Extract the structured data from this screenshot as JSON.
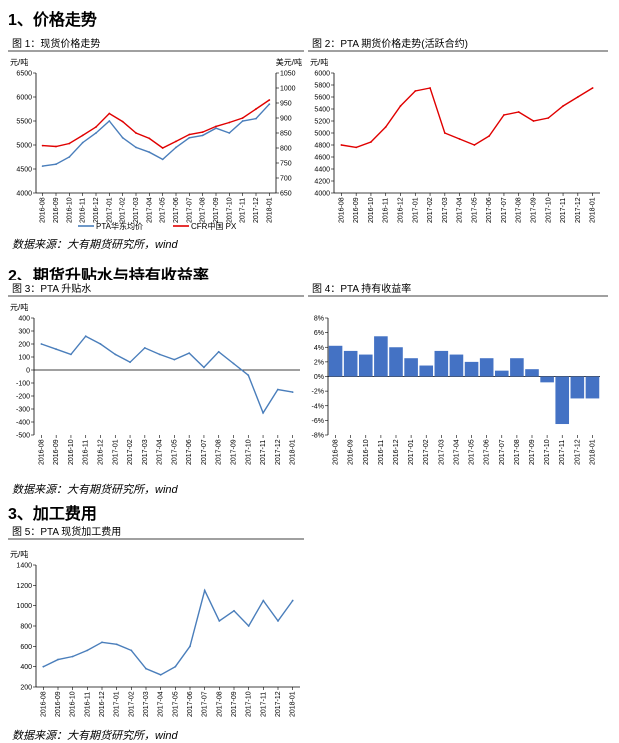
{
  "sections": [
    "1、价格走势",
    "2、期货升贴水与持有收益率",
    "3、加工费用"
  ],
  "source": "数据来源：大有期货研究所，wind",
  "months": [
    "2016-08",
    "2016-09",
    "2016-10",
    "2016-11",
    "2016-12",
    "2017-01",
    "2017-02",
    "2017-03",
    "2017-04",
    "2017-05",
    "2017-06",
    "2017-07",
    "2017-08",
    "2017-09",
    "2017-10",
    "2017-11",
    "2017-12",
    "2018-01"
  ],
  "chart_data": [
    {
      "type": "line",
      "title": "图 1：现货价格走势",
      "ylabel_left": "元/吨",
      "ylabel_right": "美元/吨",
      "ylim": [
        4000,
        6500
      ],
      "y2lim": [
        650,
        1050
      ],
      "yticks": [
        4000,
        4500,
        5000,
        5500,
        6000,
        6500
      ],
      "y2ticks": [
        650,
        700,
        750,
        800,
        850,
        900,
        950,
        1000,
        1050
      ],
      "x": [
        "2016-08",
        "2016-09",
        "2016-10",
        "2016-11",
        "2016-12",
        "2017-01",
        "2017-02",
        "2017-03",
        "2017-04",
        "2017-05",
        "2017-06",
        "2017-07",
        "2017-08",
        "2017-09",
        "2017-10",
        "2017-11",
        "2017-12",
        "2018-01"
      ],
      "series": [
        {
          "name": "PTA华东均价",
          "axis": "left",
          "color": "#4a7ebb",
          "values": [
            4560,
            4600,
            4750,
            5050,
            5250,
            5500,
            5150,
            4950,
            4850,
            4700,
            4950,
            5150,
            5200,
            5350,
            5250,
            5500,
            5550,
            5850
          ]
        },
        {
          "name": "CFR中国 PX",
          "axis": "right",
          "color": "#e00000",
          "values": [
            808,
            805,
            815,
            842,
            870,
            915,
            888,
            850,
            832,
            800,
            822,
            845,
            853,
            872,
            885,
            900,
            930,
            960
          ]
        }
      ],
      "legend": "bottom"
    },
    {
      "type": "line",
      "title": "图 2：PTA 期货价格走势(活跃合约)",
      "ylabel": "元/吨",
      "ylim": [
        4000,
        6000
      ],
      "yticks": [
        4000,
        4200,
        4400,
        4600,
        4800,
        5000,
        5200,
        5400,
        5600,
        5800,
        6000
      ],
      "x": [
        "2016-08",
        "2016-09",
        "2016-10",
        "2016-11",
        "2016-12",
        "2017-01",
        "2017-02",
        "2017-03",
        "2017-04",
        "2017-05",
        "2017-06",
        "2017-07",
        "2017-08",
        "2017-09",
        "2017-10",
        "2017-11",
        "2017-12",
        "2018-01"
      ],
      "series": [
        {
          "name": "",
          "color": "#e00000",
          "values": [
            4800,
            4760,
            4850,
            5100,
            5450,
            5700,
            5750,
            5000,
            4900,
            4800,
            4950,
            5300,
            5350,
            5200,
            5250,
            5450,
            5600,
            5750
          ]
        }
      ]
    },
    {
      "type": "line",
      "title": "图 3：PTA 升贴水",
      "ylabel": "元/吨",
      "ylim": [
        -500,
        400
      ],
      "yticks": [
        -500,
        -400,
        -300,
        -200,
        -100,
        0,
        100,
        200,
        300,
        400
      ],
      "x": [
        "2016-08",
        "2016-09",
        "2016-10",
        "2016-11",
        "2016-12",
        "2017-01",
        "2017-02",
        "2017-03",
        "2017-04",
        "2017-05",
        "2017-06",
        "2017-07",
        "2017-08",
        "2017-09",
        "2017-10",
        "2017-11",
        "2017-12",
        "2018-01"
      ],
      "series": [
        {
          "name": "",
          "color": "#4a7ebb",
          "values": [
            200,
            160,
            120,
            260,
            200,
            120,
            60,
            170,
            120,
            80,
            130,
            20,
            140,
            50,
            -40,
            -330,
            -150,
            -170
          ]
        }
      ]
    },
    {
      "type": "bar",
      "title": "图 4：PTA 持有收益率",
      "ylim": [
        -8,
        8
      ],
      "yticks": [
        "-8%",
        "-6%",
        "-4%",
        "-2%",
        "0%",
        "2%",
        "4%",
        "6%",
        "8%"
      ],
      "x": [
        "2016-08",
        "2016-09",
        "2016-10",
        "2016-11",
        "2016-12",
        "2017-01",
        "2017-02",
        "2017-03",
        "2017-04",
        "2017-05",
        "2017-06",
        "2017-07",
        "2017-08",
        "2017-09",
        "2017-10",
        "2017-11",
        "2017-12",
        "2018-01"
      ],
      "series": [
        {
          "name": "",
          "color": "#4472c4",
          "values": [
            4.2,
            3.5,
            3.0,
            5.5,
            4.0,
            2.5,
            1.5,
            3.5,
            3.0,
            2.0,
            2.5,
            0.8,
            2.5,
            1.0,
            -0.8,
            -6.5,
            -3.0,
            -3.0
          ]
        }
      ]
    },
    {
      "type": "line",
      "title": "图 5：PTA 现货加工费用",
      "ylabel": "元/吨",
      "ylim": [
        200,
        1400
      ],
      "yticks": [
        200,
        400,
        600,
        800,
        1000,
        1200,
        1400
      ],
      "x": [
        "2016-08",
        "2016-09",
        "2016-10",
        "2016-11",
        "2016-12",
        "2017-01",
        "2017-02",
        "2017-03",
        "2017-04",
        "2017-05",
        "2017-06",
        "2017-07",
        "2017-08",
        "2017-09",
        "2017-10",
        "2017-11",
        "2017-12",
        "2018-01"
      ],
      "series": [
        {
          "name": "",
          "color": "#4a7ebb",
          "values": [
            400,
            470,
            500,
            560,
            640,
            620,
            560,
            380,
            320,
            400,
            600,
            1150,
            850,
            950,
            800,
            1050,
            850,
            1050
          ]
        }
      ]
    }
  ]
}
